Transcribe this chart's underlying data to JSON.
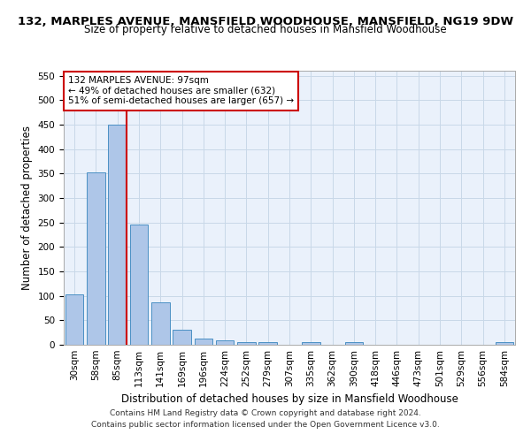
{
  "title1": "132, MARPLES AVENUE, MANSFIELD WOODHOUSE, MANSFIELD, NG19 9DW",
  "title2": "Size of property relative to detached houses in Mansfield Woodhouse",
  "xlabel": "Distribution of detached houses by size in Mansfield Woodhouse",
  "ylabel": "Number of detached properties",
  "footnote1": "Contains HM Land Registry data © Crown copyright and database right 2024.",
  "footnote2": "Contains public sector information licensed under the Open Government Licence v3.0.",
  "bin_labels": [
    "30sqm",
    "58sqm",
    "85sqm",
    "113sqm",
    "141sqm",
    "169sqm",
    "196sqm",
    "224sqm",
    "252sqm",
    "279sqm",
    "307sqm",
    "335sqm",
    "362sqm",
    "390sqm",
    "418sqm",
    "446sqm",
    "473sqm",
    "501sqm",
    "529sqm",
    "556sqm",
    "584sqm"
  ],
  "bar_values": [
    103,
    353,
    450,
    245,
    87,
    30,
    13,
    9,
    5,
    5,
    0,
    5,
    0,
    5,
    0,
    0,
    0,
    0,
    0,
    0,
    5
  ],
  "bar_color": "#aec6e8",
  "bar_edgecolor": "#4a90c4",
  "grid_color": "#c8d8e8",
  "background_color": "#eaf1fb",
  "annotation_box_text": "132 MARPLES AVENUE: 97sqm\n← 49% of detached houses are smaller (632)\n51% of semi-detached houses are larger (657) →",
  "annotation_box_color": "#ffffff",
  "annotation_box_edgecolor": "#cc0000",
  "vline_x": 2.43,
  "vline_color": "#cc0000",
  "ylim": [
    0,
    560
  ],
  "yticks": [
    0,
    50,
    100,
    150,
    200,
    250,
    300,
    350,
    400,
    450,
    500,
    550
  ],
  "title1_fontsize": 9.5,
  "title2_fontsize": 8.5,
  "xlabel_fontsize": 8.5,
  "ylabel_fontsize": 8.5,
  "tick_fontsize": 7.5,
  "footnote_fontsize": 6.5,
  "annot_fontsize": 7.5
}
